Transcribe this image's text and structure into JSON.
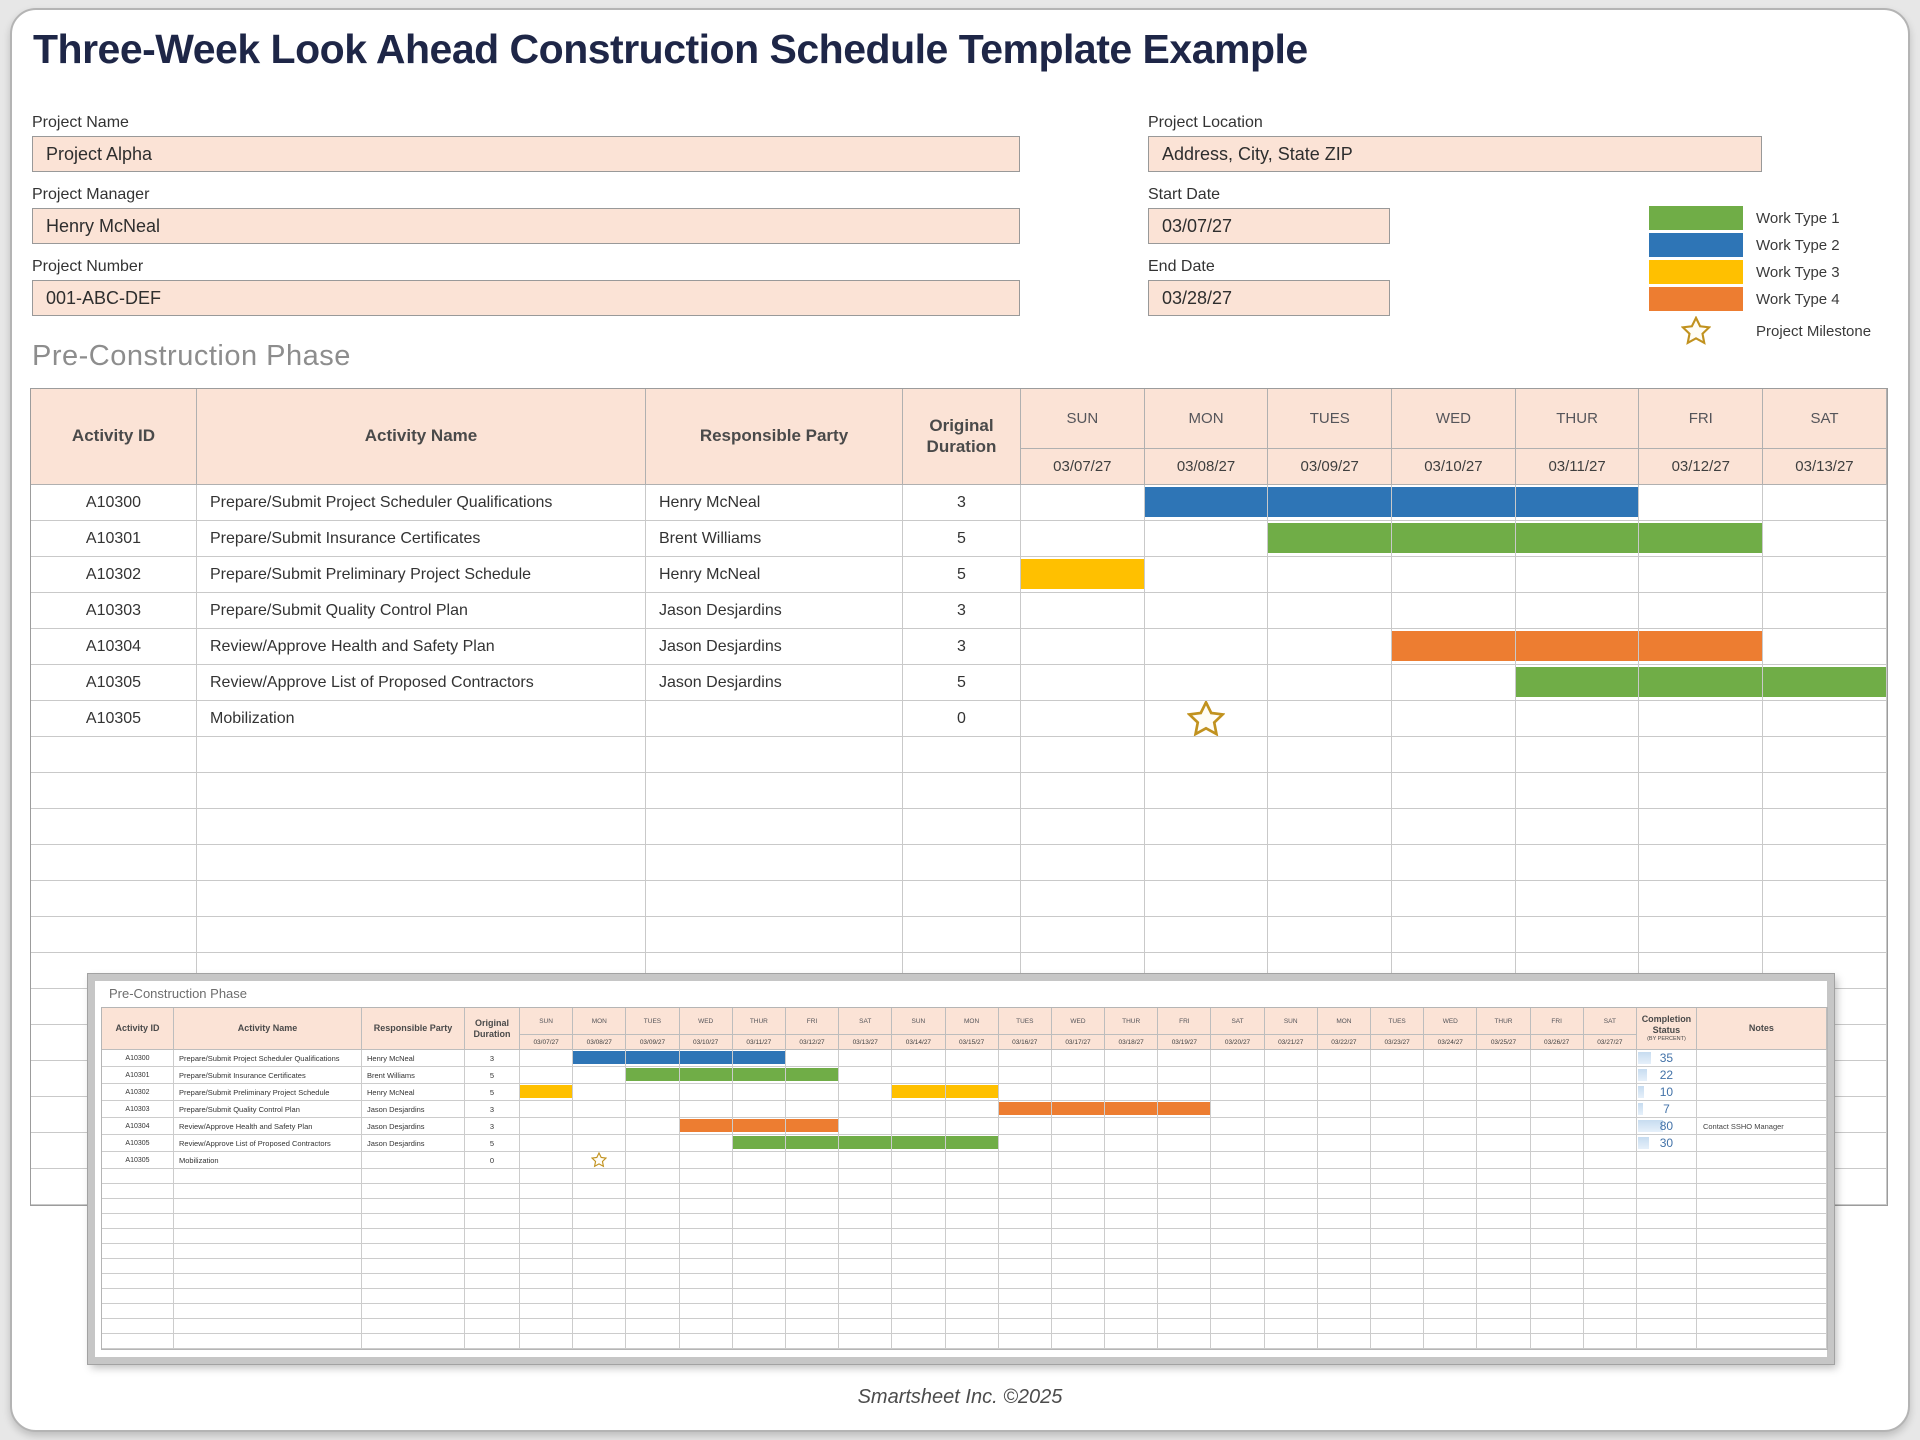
{
  "page": {
    "title": "Three-Week Look Ahead Construction Schedule Template Example",
    "section_heading": "Pre-Construction Phase",
    "footer": "Smartsheet Inc. ©2025"
  },
  "inset": {
    "heading": "Pre-Construction Phase"
  },
  "form": {
    "left": [
      {
        "label": "Project Name",
        "value": "Project Alpha"
      },
      {
        "label": "Project Manager",
        "value": "Henry McNeal"
      },
      {
        "label": "Project Number",
        "value": "001-ABC-DEF"
      }
    ],
    "right": [
      {
        "label": "Project Location",
        "value": "Address, City, State ZIP"
      },
      {
        "label": "Start Date",
        "value": "03/07/27"
      },
      {
        "label": "End Date",
        "value": "03/28/27"
      }
    ]
  },
  "colors": {
    "work_type_1": "#70AD47",
    "work_type_2": "#2E75B6",
    "work_type_3": "#FFC000",
    "work_type_4": "#ED7D31",
    "milestone_star": "#C1921F",
    "header_fill": "#FBE3D6",
    "title_navy": "#1E2647",
    "completion_bar": "#C7DCF0",
    "completion_text": "#4272A8"
  },
  "legend": {
    "items": [
      {
        "label": "Work Type 1",
        "color": "work_type_1"
      },
      {
        "label": "Work Type 2",
        "color": "work_type_2"
      },
      {
        "label": "Work Type 3",
        "color": "work_type_3"
      },
      {
        "label": "Work Type 4",
        "color": "work_type_4"
      }
    ],
    "milestone_label": "Project Milestone"
  },
  "table_headers": {
    "activity_id": "Activity ID",
    "activity_name": "Activity Name",
    "responsible_party": "Responsible Party",
    "original_duration": "Original Duration",
    "completion_status": "Completion Status",
    "completion_sub": "(BY PERCENT)",
    "notes": "Notes"
  },
  "week1_days": [
    {
      "day": "SUN",
      "date": "03/07/27"
    },
    {
      "day": "MON",
      "date": "03/08/27"
    },
    {
      "day": "TUES",
      "date": "03/09/27"
    },
    {
      "day": "WED",
      "date": "03/10/27"
    },
    {
      "day": "THUR",
      "date": "03/11/27"
    },
    {
      "day": "FRI",
      "date": "03/12/27"
    },
    {
      "day": "SAT",
      "date": "03/13/27"
    }
  ],
  "threeweek_days": [
    {
      "day": "SUN",
      "date": "03/07/27"
    },
    {
      "day": "MON",
      "date": "03/08/27"
    },
    {
      "day": "TUES",
      "date": "03/09/27"
    },
    {
      "day": "WED",
      "date": "03/10/27"
    },
    {
      "day": "THUR",
      "date": "03/11/27"
    },
    {
      "day": "FRI",
      "date": "03/12/27"
    },
    {
      "day": "SAT",
      "date": "03/13/27"
    },
    {
      "day": "SUN",
      "date": "03/14/27"
    },
    {
      "day": "MON",
      "date": "03/15/27"
    },
    {
      "day": "TUES",
      "date": "03/16/27"
    },
    {
      "day": "WED",
      "date": "03/17/27"
    },
    {
      "day": "THUR",
      "date": "03/18/27"
    },
    {
      "day": "FRI",
      "date": "03/19/27"
    },
    {
      "day": "SAT",
      "date": "03/20/27"
    },
    {
      "day": "SUN",
      "date": "03/21/27"
    },
    {
      "day": "MON",
      "date": "03/22/27"
    },
    {
      "day": "TUES",
      "date": "03/23/27"
    },
    {
      "day": "WED",
      "date": "03/24/27"
    },
    {
      "day": "THUR",
      "date": "03/25/27"
    },
    {
      "day": "FRI",
      "date": "03/26/27"
    },
    {
      "day": "SAT",
      "date": "03/27/27"
    }
  ],
  "activities": [
    {
      "id": "A10300",
      "name": "Prepare/Submit Project Scheduler Qualifications",
      "party": "Henry McNeal",
      "duration": "3",
      "color": "work_type_2",
      "bars_week1": [
        [
          1,
          4
        ]
      ],
      "bars_3week": [
        [
          1,
          4
        ]
      ],
      "milestone_week1": null,
      "milestone_3week": null,
      "completion": "35",
      "notes": ""
    },
    {
      "id": "A10301",
      "name": "Prepare/Submit Insurance Certificates",
      "party": "Brent Williams",
      "duration": "5",
      "color": "work_type_1",
      "bars_week1": [
        [
          2,
          5
        ]
      ],
      "bars_3week": [
        [
          2,
          5
        ]
      ],
      "milestone_week1": null,
      "milestone_3week": null,
      "completion": "22",
      "notes": ""
    },
    {
      "id": "A10302",
      "name": "Prepare/Submit Preliminary Project Schedule",
      "party": "Henry McNeal",
      "duration": "5",
      "color": "work_type_3",
      "bars_week1": [
        [
          0,
          0
        ]
      ],
      "bars_3week": [
        [
          0,
          0
        ],
        [
          7,
          8
        ]
      ],
      "milestone_week1": null,
      "milestone_3week": null,
      "completion": "10",
      "notes": ""
    },
    {
      "id": "A10303",
      "name": "Prepare/Submit Quality Control Plan",
      "party": "Jason Desjardins",
      "duration": "3",
      "color": "work_type_4",
      "bars_week1": [],
      "bars_3week": [
        [
          9,
          12
        ]
      ],
      "milestone_week1": null,
      "milestone_3week": null,
      "completion": "7",
      "notes": ""
    },
    {
      "id": "A10304",
      "name": "Review/Approve Health and Safety Plan",
      "party": "Jason Desjardins",
      "duration": "3",
      "color": "work_type_4",
      "bars_week1": [
        [
          3,
          5
        ]
      ],
      "bars_3week": [
        [
          3,
          5
        ]
      ],
      "milestone_week1": null,
      "milestone_3week": null,
      "completion": "80",
      "notes": "Contact SSHO Manager"
    },
    {
      "id": "A10305",
      "name": "Review/Approve List of Proposed Contractors",
      "party": "Jason Desjardins",
      "duration": "5",
      "color": "work_type_1",
      "bars_week1": [
        [
          4,
          6
        ]
      ],
      "bars_3week": [
        [
          4,
          8
        ]
      ],
      "milestone_week1": null,
      "milestone_3week": null,
      "completion": "30",
      "notes": ""
    },
    {
      "id": "A10305",
      "name": "Mobilization",
      "party": "",
      "duration": "0",
      "color": null,
      "bars_week1": [],
      "bars_3week": [],
      "milestone_week1": 1,
      "milestone_3week": 1,
      "completion": "",
      "notes": ""
    }
  ],
  "empty_rows": {
    "main": 13,
    "inset": 12
  }
}
